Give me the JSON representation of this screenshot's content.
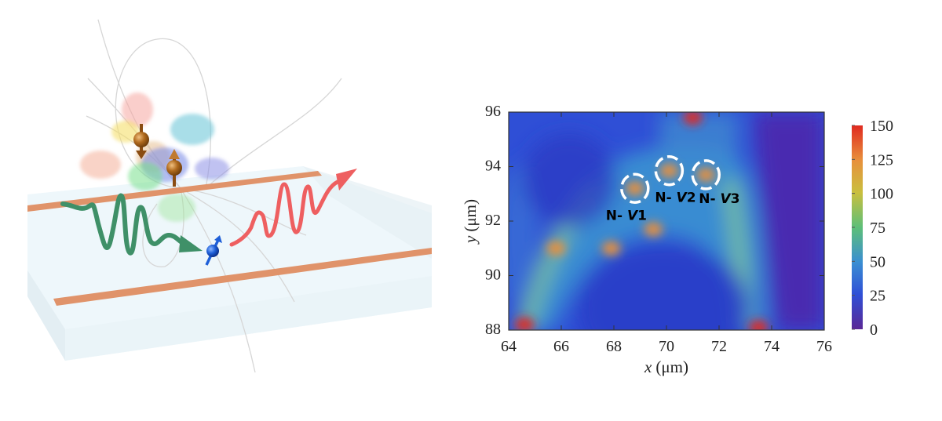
{
  "illustration": {
    "elements": [
      "protein",
      "electron-spin-pair",
      "nv-spin",
      "green-excitation-wave",
      "red-emission-wave",
      "microwave-stripline",
      "diamond-substrate",
      "magnetic-field-lines"
    ],
    "colors": {
      "stripline": "#e0936a",
      "green_wave": "#3f9068",
      "red_wave": "#ee5f60",
      "spin_pair": "#b06a1e",
      "nv_spin": "#1e5fd8"
    }
  },
  "chart_data": {
    "type": "heatmap",
    "xlabel_var": "x",
    "xlabel_unit": "(μm)",
    "ylabel_var": "y",
    "ylabel_unit": "(μm)",
    "xlim": [
      64,
      76
    ],
    "ylim": [
      88,
      96
    ],
    "x_ticks": [
      "64",
      "66",
      "68",
      "70",
      "72",
      "74",
      "76"
    ],
    "y_ticks": [
      "88",
      "90",
      "92",
      "94",
      "96"
    ],
    "colorbar": {
      "range": [
        0,
        150
      ],
      "ticks": [
        "150",
        "125",
        "100",
        "75",
        "50",
        "25",
        "0"
      ],
      "colors": [
        "#5a2896",
        "#2f4fd6",
        "#3a8fd2",
        "#5dbf78",
        "#c9bf3e",
        "#e8903c",
        "#e02a20"
      ]
    },
    "annotations": [
      {
        "prefix": "N- ",
        "italic": "V",
        "index": "1",
        "x": 68.8,
        "y": 93.2
      },
      {
        "prefix": "N- ",
        "italic": "V",
        "index": "2",
        "x": 70.1,
        "y": 93.85
      },
      {
        "prefix": "N- ",
        "italic": "V",
        "index": "3",
        "x": 71.5,
        "y": 93.7
      }
    ],
    "hotspots": [
      {
        "x": 71.0,
        "y": 95.8,
        "value": 150
      },
      {
        "x": 64.6,
        "y": 88.2,
        "value": 150
      },
      {
        "x": 73.5,
        "y": 88.1,
        "value": 145
      },
      {
        "x": 68.8,
        "y": 93.2,
        "value": 125
      },
      {
        "x": 70.1,
        "y": 93.85,
        "value": 115
      },
      {
        "x": 71.5,
        "y": 93.7,
        "value": 120
      },
      {
        "x": 65.8,
        "y": 91.0,
        "value": 130
      },
      {
        "x": 67.9,
        "y": 91.0,
        "value": 125
      },
      {
        "x": 69.5,
        "y": 91.7,
        "value": 130
      }
    ]
  }
}
